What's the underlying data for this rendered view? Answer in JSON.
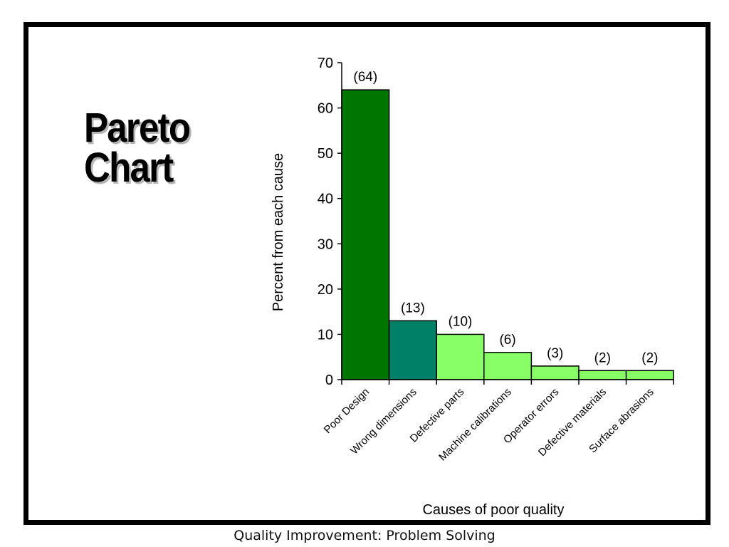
{
  "slide": {
    "title_line1": "Pareto",
    "title_line2": "Chart",
    "footer": "Quality Improvement: Problem Solving"
  },
  "chart_data": {
    "type": "bar",
    "title": "",
    "xlabel": "Causes of poor quality",
    "ylabel": "Percent from each cause",
    "ylim": [
      0,
      70
    ],
    "yticks": [
      0,
      10,
      20,
      30,
      40,
      50,
      60,
      70
    ],
    "grid": false,
    "categories": [
      "Poor Design",
      "Wrong dimensions",
      "Defective parts",
      "Machine calibrations",
      "Operator errors",
      "Defective materials",
      "Surface abrasions"
    ],
    "values": [
      64,
      13,
      10,
      6,
      3,
      2,
      2
    ],
    "data_labels": [
      "(64)",
      "(13)",
      "(10)",
      "(6)",
      "(3)",
      "(2)",
      "(2)"
    ],
    "colors": [
      "#007500",
      "#008066",
      "#88ff66",
      "#88ff66",
      "#88ff66",
      "#88ff66",
      "#88ff66"
    ]
  }
}
